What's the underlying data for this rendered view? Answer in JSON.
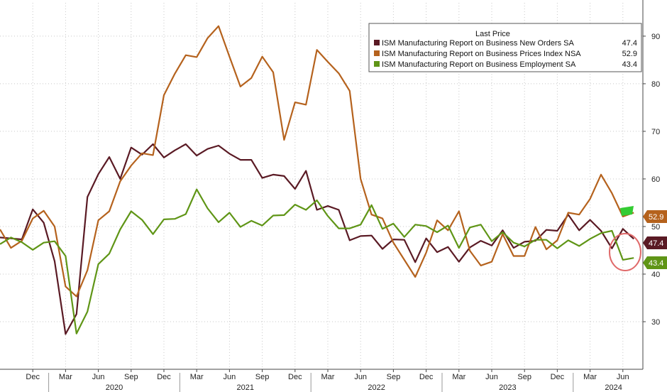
{
  "chart_data": {
    "type": "line",
    "ylim": [
      20,
      97
    ],
    "yticks": [
      30,
      40,
      50,
      60,
      70,
      80,
      90
    ],
    "month_ticks": [
      "Dec",
      "Mar",
      "Jun",
      "Sep",
      "Dec",
      "Mar",
      "Jun",
      "Sep",
      "Dec",
      "Mar",
      "Jun",
      "Sep",
      "Dec",
      "Mar",
      "Jun",
      "Sep",
      "Dec",
      "Mar",
      "Jun"
    ],
    "year_labels": [
      "2020",
      "2021",
      "2022",
      "2023",
      "2024"
    ],
    "x_start": "2019-09",
    "legend": {
      "title": "Last Price",
      "placement": "top-right"
    },
    "grid": true,
    "series": [
      {
        "name": "ISM Manufacturing Report on Business New Orders SA",
        "last": "47.4",
        "color": "#5a1a24",
        "values": [
          47.7,
          47.5,
          47.3,
          53.6,
          50.8,
          42.7,
          27.4,
          31.6,
          56.2,
          61.0,
          64.6,
          60.0,
          66.6,
          65.1,
          67.3,
          64.5,
          66.0,
          67.3,
          64.9,
          66.3,
          67.0,
          65.3,
          64.0,
          64.0,
          60.2,
          60.9,
          60.6,
          57.9,
          61.7,
          53.5,
          54.3,
          53.5,
          47.1,
          48.0,
          48.1,
          45.3,
          47.3,
          47.2,
          42.5,
          47.5,
          44.6,
          45.7,
          42.6,
          45.6,
          47.0,
          46.0,
          49.2,
          45.5,
          46.8,
          47.0,
          49.3,
          49.1,
          52.5,
          49.2,
          51.4,
          49.1,
          45.4,
          49.5,
          47.4
        ]
      },
      {
        "name": "ISM Manufacturing Report on Business Prices Index NSA",
        "last": "52.9",
        "color": "#b5621d",
        "values": [
          49.4,
          45.5,
          47.0,
          51.7,
          53.3,
          50.0,
          37.4,
          35.3,
          40.8,
          51.3,
          53.2,
          59.5,
          62.8,
          65.4,
          65.0,
          77.6,
          82.1,
          86.0,
          85.6,
          89.6,
          92.1,
          85.7,
          79.4,
          81.2,
          85.7,
          82.4,
          68.2,
          76.1,
          75.6,
          87.1,
          84.6,
          82.2,
          78.5,
          60.0,
          52.5,
          51.7,
          46.6,
          43.0,
          39.4,
          44.5,
          51.3,
          49.2,
          53.2,
          44.9,
          41.8,
          42.6,
          48.4,
          43.8,
          43.8,
          49.9,
          45.2,
          47.1,
          52.9,
          52.5,
          55.8,
          60.9,
          57.0,
          52.1,
          52.9
        ]
      },
      {
        "name": "ISM Manufacturing Report on Business Employment SA",
        "last": "43.4",
        "color": "#5f9516",
        "values": [
          46.3,
          47.7,
          46.7,
          45.1,
          46.6,
          46.9,
          43.8,
          27.5,
          32.1,
          42.1,
          44.3,
          49.4,
          53.2,
          51.4,
          48.4,
          51.5,
          51.6,
          52.6,
          57.8,
          53.8,
          50.9,
          52.9,
          49.9,
          51.2,
          50.2,
          52.3,
          52.4,
          54.6,
          53.5,
          55.5,
          52.2,
          49.6,
          49.6,
          50.4,
          54.5,
          49.5,
          50.6,
          47.8,
          50.4,
          50.1,
          48.8,
          50.2,
          45.5,
          49.8,
          50.4,
          46.9,
          48.8,
          46.6,
          45.8,
          47.2,
          47.2,
          45.4,
          47.1,
          45.9,
          47.4,
          48.6,
          49.1,
          43.0,
          43.4
        ]
      }
    ]
  }
}
